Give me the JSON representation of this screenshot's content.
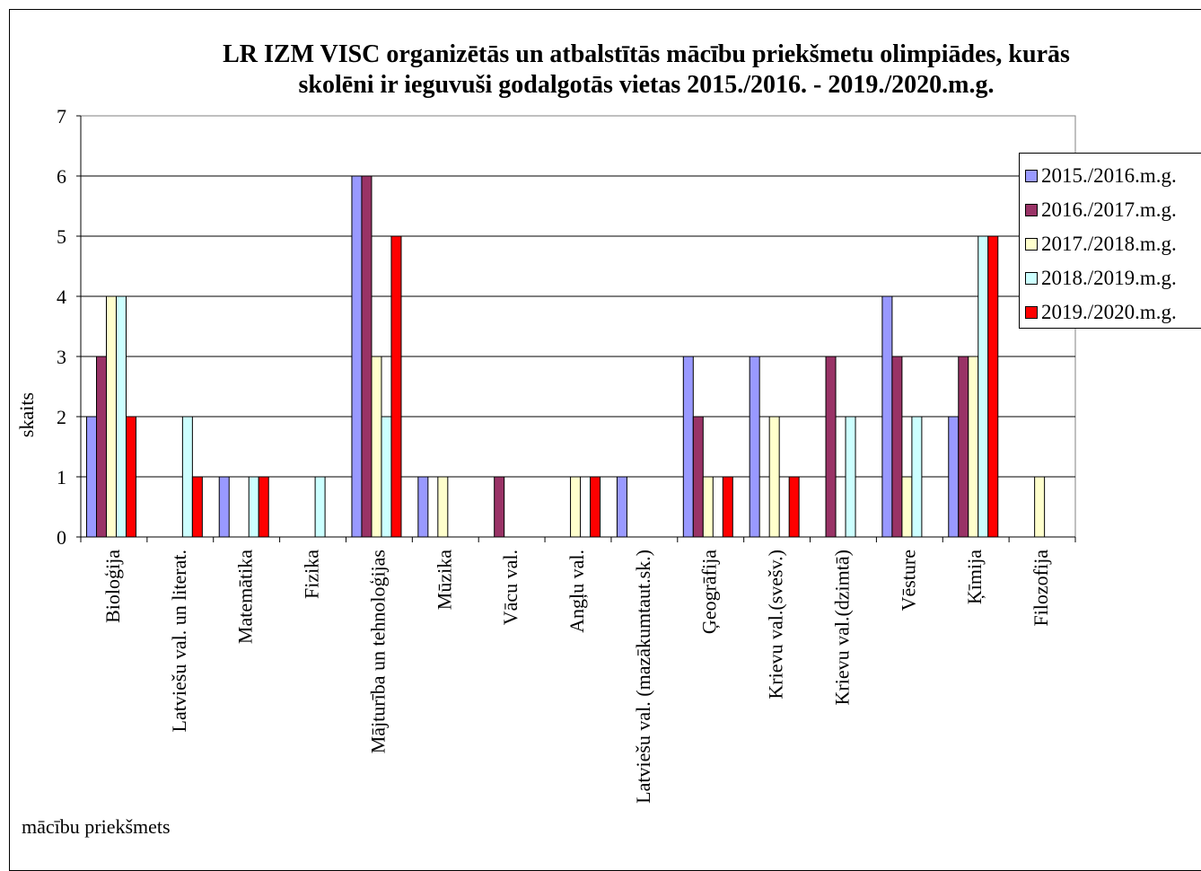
{
  "chart_data": {
    "type": "bar",
    "title_lines": [
      "LR IZM VISC organizētās un atbalstītās mācību priekšmetu olimpiādes, kurās",
      "skolēni ir ieguvuši godalgotās vietas 2015./2016. - 2019./2020.m.g."
    ],
    "xlabel": "mācību priekšmets",
    "ylabel": "skaits",
    "ylim": [
      0,
      7
    ],
    "yticks": [
      0,
      1,
      2,
      3,
      4,
      5,
      6,
      7
    ],
    "grid": true,
    "legend_position": "right",
    "categories": [
      "Bioloģija",
      "Latviešu val.  un literat.",
      "Matemātika",
      "Fizika",
      "Mājturība un tehnoloģijas",
      "Mūzika",
      "Vācu val.",
      "Angļu val.",
      "Latviešu val. (mazākumtaut.sk.)",
      "Ģeogrāfija",
      "Krievu val.(svešv.)",
      "Krievu val.(dzimtā)",
      "Vēsture",
      "Ķīmija",
      "Filozofija"
    ],
    "series": [
      {
        "name": "2015./2016.m.g.",
        "color": "#9999ff",
        "values": [
          2,
          0,
          1,
          0,
          6,
          1,
          0,
          0,
          1,
          3,
          3,
          0,
          4,
          2,
          0
        ]
      },
      {
        "name": "2016./2017.m.g.",
        "color": "#993366",
        "values": [
          3,
          0,
          0,
          0,
          6,
          0,
          1,
          0,
          0,
          2,
          0,
          3,
          3,
          3,
          0
        ]
      },
      {
        "name": "2017./2018.m.g.",
        "color": "#ffffcc",
        "values": [
          4,
          0,
          0,
          0,
          3,
          1,
          0,
          1,
          0,
          1,
          2,
          0,
          1,
          3,
          1
        ]
      },
      {
        "name": "2018./2019.m.g.",
        "color": "#ccffff",
        "values": [
          4,
          2,
          1,
          1,
          2,
          0,
          0,
          0,
          0,
          0,
          0,
          2,
          2,
          5,
          0
        ]
      },
      {
        "name": "2019./2020.m.g.",
        "color": "#ff0000",
        "values": [
          2,
          1,
          1,
          0,
          5,
          0,
          0,
          1,
          0,
          1,
          1,
          0,
          0,
          5,
          0
        ]
      }
    ]
  }
}
